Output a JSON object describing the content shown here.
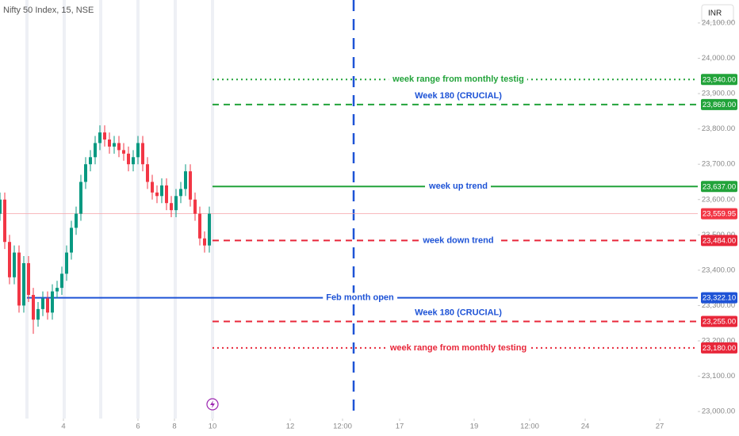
{
  "chart_data": {
    "type": "candlestick",
    "title": "Nifty 50 Index, 15, NSE",
    "currency": "INR",
    "up_color": "#089981",
    "down_color": "#f23645",
    "x": [
      0,
      3,
      6,
      9,
      12,
      15,
      18,
      21,
      24,
      27,
      30,
      33,
      36,
      39,
      42,
      45,
      48,
      51,
      54,
      57,
      60,
      63,
      66,
      69,
      72,
      75,
      78,
      81,
      84,
      87,
      90,
      93,
      96,
      99,
      102,
      105,
      108,
      111,
      114,
      117,
      120,
      123,
      126,
      129,
      132
    ],
    "open": [
      23560,
      23600,
      23480,
      23380,
      23450,
      23300,
      23420,
      23330,
      23260,
      23290,
      23320,
      23280,
      23340,
      23350,
      23390,
      23450,
      23520,
      23560,
      23650,
      23700,
      23720,
      23760,
      23790,
      23770,
      23750,
      23760,
      23740,
      23730,
      23700,
      23720,
      23760,
      23700,
      23650,
      23620,
      23610,
      23640,
      23590,
      23570,
      23610,
      23630,
      23680,
      23600,
      23560,
      23490,
      23470
    ],
    "high": [
      23620,
      23620,
      23500,
      23470,
      23470,
      23440,
      23440,
      23350,
      23310,
      23340,
      23340,
      23360,
      23370,
      23410,
      23470,
      23540,
      23580,
      23670,
      23720,
      23740,
      23780,
      23810,
      23810,
      23790,
      23780,
      23780,
      23760,
      23750,
      23740,
      23780,
      23780,
      23720,
      23670,
      23640,
      23660,
      23660,
      23610,
      23630,
      23650,
      23700,
      23700,
      23620,
      23580,
      23510,
      23580
    ],
    "low": [
      23540,
      23460,
      23360,
      23360,
      23280,
      23280,
      23310,
      23220,
      23240,
      23270,
      23260,
      23260,
      23320,
      23330,
      23370,
      23430,
      23500,
      23540,
      23630,
      23680,
      23700,
      23740,
      23750,
      23730,
      23730,
      23720,
      23710,
      23680,
      23680,
      23700,
      23680,
      23630,
      23600,
      23590,
      23590,
      23570,
      23550,
      23550,
      23590,
      23610,
      23580,
      23540,
      23470,
      23450,
      23450
    ],
    "close": [
      23600,
      23480,
      23380,
      23450,
      23300,
      23420,
      23330,
      23260,
      23290,
      23320,
      23280,
      23340,
      23350,
      23390,
      23450,
      23520,
      23560,
      23650,
      23700,
      23720,
      23760,
      23790,
      23770,
      23750,
      23760,
      23740,
      23730,
      23700,
      23720,
      23760,
      23700,
      23650,
      23620,
      23610,
      23640,
      23590,
      23570,
      23610,
      23630,
      23680,
      23600,
      23560,
      23490,
      23470,
      23560
    ],
    "xlim": [
      0,
      440
    ],
    "xticks": [
      {
        "value": 40,
        "label": "4"
      },
      {
        "value": 87,
        "label": "6"
      },
      {
        "value": 110,
        "label": "8"
      },
      {
        "value": 134,
        "label": "10"
      },
      {
        "value": 183,
        "label": "12"
      },
      {
        "value": 216,
        "label": "12:00"
      },
      {
        "value": 252,
        "label": "17"
      },
      {
        "value": 299,
        "label": "19"
      },
      {
        "value": 334,
        "label": "12:00"
      },
      {
        "value": 369,
        "label": "24"
      },
      {
        "value": 416,
        "label": "27"
      }
    ],
    "ylim": [
      22980,
      24165
    ],
    "yticks": [
      {
        "value": 23000,
        "label": "23,000.00"
      },
      {
        "value": 23100,
        "label": "23,100.00"
      },
      {
        "value": 23200,
        "label": "23,200.00"
      },
      {
        "value": 23300,
        "label": "23,300.00"
      },
      {
        "value": 23400,
        "label": "23,400.00"
      },
      {
        "value": 23500,
        "label": "23,500.00"
      },
      {
        "value": 23600,
        "label": "23,600.00"
      },
      {
        "value": 23700,
        "label": "23,700.00"
      },
      {
        "value": 23800,
        "label": "23,800.00"
      },
      {
        "value": 23900,
        "label": "23,900.00"
      },
      {
        "value": 24000,
        "label": "24,000.00"
      },
      {
        "value": 24100,
        "label": "24,100.00"
      }
    ],
    "vline_x": 223,
    "levels": [
      {
        "value": 23940,
        "label": "23,940.00",
        "text": "week  range from monthly testig",
        "color": "#22a33a",
        "text_color": "#22a33a",
        "style": "dotted",
        "start": 134,
        "text_position": "middle"
      },
      {
        "value": 23869,
        "label": "23,869.00",
        "text": "Week 180 (CRUCIAL)",
        "color": "#22a33a",
        "text_color": "#1e53d6",
        "style": "dashed",
        "start": 134,
        "text_position": "above"
      },
      {
        "value": 23637,
        "label": "23,637.00",
        "text": "week up trend",
        "color": "#22a33a",
        "text_color": "#1e53d6",
        "style": "solid",
        "start": 134,
        "text_position": "middle"
      },
      {
        "value": 23559.95,
        "label": "23,559.95",
        "color": "#f5a3a8",
        "box_color": "#f23645",
        "style": "thin",
        "start": 0
      },
      {
        "value": 23484,
        "label": "23,484.00",
        "text": "week down trend",
        "color": "#e8273a",
        "text_color": "#1e53d6",
        "style": "dashed",
        "start": 134,
        "text_position": "middle"
      },
      {
        "value": 23322.1,
        "label": "23,322.10",
        "text": "Feb month open",
        "color": "#1e53d6",
        "text_color": "#1e53d6",
        "style": "solid",
        "start": 17,
        "text_position": "middle",
        "text_at": 227
      },
      {
        "value": 23255,
        "label": "23,255.00",
        "text": "Week  180 (CRUCIAL)",
        "color": "#e8273a",
        "text_color": "#1e53d6",
        "style": "dashed",
        "start": 134,
        "text_position": "above"
      },
      {
        "value": 23180,
        "label": "23,180.00",
        "text": "week range from monthly testing",
        "color": "#e8273a",
        "text_color": "#e8273a",
        "style": "dotted",
        "start": 134,
        "text_position": "middle"
      }
    ]
  }
}
